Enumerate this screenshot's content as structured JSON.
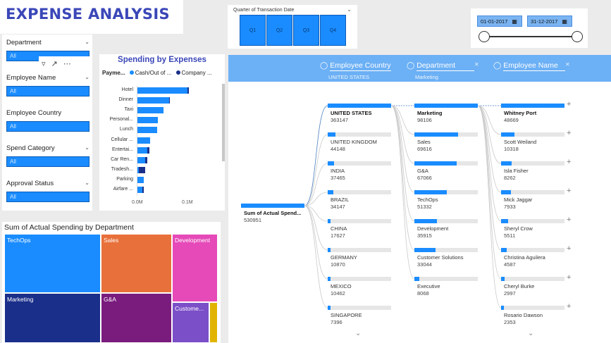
{
  "title": "EXPENSE ANALYSIS",
  "quarter": {
    "label": "Quarter of Transaction Date",
    "buttons": [
      "Q1",
      "Q2",
      "Q3",
      "Q4"
    ]
  },
  "dates": {
    "start": "01-01-2017",
    "end": "31-12-2017"
  },
  "filters": [
    {
      "name": "Department",
      "value": "All"
    },
    {
      "name": "Employee Name",
      "value": "All"
    },
    {
      "name": "Employee Country",
      "value": "All"
    },
    {
      "name": "Spend Category",
      "value": "All"
    },
    {
      "name": "Approval Status",
      "value": "All"
    }
  ],
  "spending": {
    "title": "Spending by Expenses",
    "legend_title": "Payme...",
    "legend": [
      {
        "name": "Cash/Out of ...",
        "color": "#1a8cff"
      },
      {
        "name": "Company ...",
        "color": "#1a2f8a"
      }
    ],
    "ticks": [
      "0.0M",
      "0.1M"
    ],
    "categories": [
      "Hotel",
      "Dinner",
      "Taxi",
      "Personal...",
      "Lunch",
      "Cellular ...",
      "Entertai...",
      "Car Ren...",
      "Tradesh...",
      "Parking",
      "Airfare ..."
    ],
    "cash": [
      0.098,
      0.062,
      0.052,
      0.04,
      0.039,
      0.025,
      0.019,
      0.015,
      0.003,
      0.012,
      0.01
    ],
    "company": [
      0.004,
      0.002,
      0.0,
      0.0,
      0.0,
      0.0,
      0.004,
      0.004,
      0.012,
      0.0,
      0.003
    ]
  },
  "treemap": {
    "title": "Sum of Actual Spending by Department",
    "cells": [
      {
        "label": "TechOps",
        "color": "#1a8cff"
      },
      {
        "label": "Sales",
        "color": "#e8703a"
      },
      {
        "label": "Development",
        "color": "#e54ab8"
      },
      {
        "label": "Marketing",
        "color": "#1a2f8a"
      },
      {
        "label": "G&A",
        "color": "#7a1b7e"
      },
      {
        "label": "Custome...",
        "color": "#7b4fc8"
      },
      {
        "label": "",
        "color": "#e0b400"
      }
    ]
  },
  "decomp": {
    "headers": [
      {
        "label": "Employee Country",
        "sub": "UNITED STATES"
      },
      {
        "label": "Department",
        "sub": "Marketing"
      },
      {
        "label": "Employee Name",
        "sub": ""
      }
    ],
    "root": {
      "label": "Sum of Actual Spend...",
      "value": "530951"
    },
    "country": [
      {
        "label": "UNITED STATES",
        "value": "363147"
      },
      {
        "label": "UNITED KINGDOM",
        "value": "44148"
      },
      {
        "label": "INDIA",
        "value": "37465"
      },
      {
        "label": "BRAZIL",
        "value": "34147"
      },
      {
        "label": "CHINA",
        "value": "17627"
      },
      {
        "label": "GERMANY",
        "value": "10870"
      },
      {
        "label": "MEXICO",
        "value": "10462"
      },
      {
        "label": "SINGAPORE",
        "value": "7396"
      }
    ],
    "department": [
      {
        "label": "Marketing",
        "value": "98106"
      },
      {
        "label": "Sales",
        "value": "69616"
      },
      {
        "label": "G&A",
        "value": "67066"
      },
      {
        "label": "TechOps",
        "value": "51332"
      },
      {
        "label": "Development",
        "value": "35915"
      },
      {
        "label": "Customer Solutions",
        "value": "33044"
      },
      {
        "label": "Executive",
        "value": "8068"
      }
    ],
    "employee": [
      {
        "label": "Whitney Port",
        "value": "48669"
      },
      {
        "label": "Scott Weiland",
        "value": "10318"
      },
      {
        "label": "Isla Fisher",
        "value": "8262"
      },
      {
        "label": "Mick Jaggar",
        "value": "7933"
      },
      {
        "label": "Sheryl Crow",
        "value": "5511"
      },
      {
        "label": "Christina Aguilera",
        "value": "4587"
      },
      {
        "label": "Cheryl Burke",
        "value": "2997"
      },
      {
        "label": "Rosario Dawson",
        "value": "2353"
      }
    ]
  }
}
